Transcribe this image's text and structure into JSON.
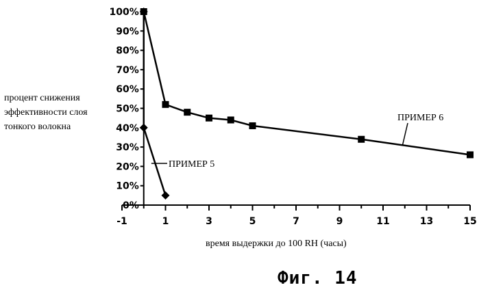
{
  "chart_data": {
    "type": "line",
    "title": "",
    "ylabel": "процент снижения эффективности слоя тонкого волокна",
    "xlabel": "время выдержки до 100 RH (часы)",
    "xlim": [
      -1,
      15
    ],
    "ylim": [
      0,
      100
    ],
    "x_ticks": [
      "-1",
      "1",
      "3",
      "5",
      "7",
      "9",
      "11",
      "13",
      "15"
    ],
    "x_tick_values": [
      -1,
      1,
      3,
      5,
      7,
      9,
      11,
      13,
      15
    ],
    "y_ticks": [
      "0%",
      "10%",
      "20%",
      "30%",
      "40%",
      "50%",
      "60%",
      "70%",
      "80%",
      "90%",
      "100%"
    ],
    "y_tick_values": [
      0,
      10,
      20,
      30,
      40,
      50,
      60,
      70,
      80,
      90,
      100
    ],
    "grid": false,
    "series": [
      {
        "name": "ПРИМЕР 6",
        "marker": "square",
        "x": [
          0,
          1,
          2,
          3,
          4,
          5,
          10,
          15
        ],
        "y": [
          100,
          52,
          48,
          45,
          44,
          41,
          34,
          26
        ]
      },
      {
        "name": "ПРИМЕР 5",
        "marker": "diamond",
        "x": [
          0,
          0,
          1
        ],
        "y": [
          100,
          40,
          5
        ]
      }
    ]
  },
  "figure_caption": "Фиг. 14",
  "colors": {
    "ink": "#000000",
    "background": "#ffffff"
  }
}
